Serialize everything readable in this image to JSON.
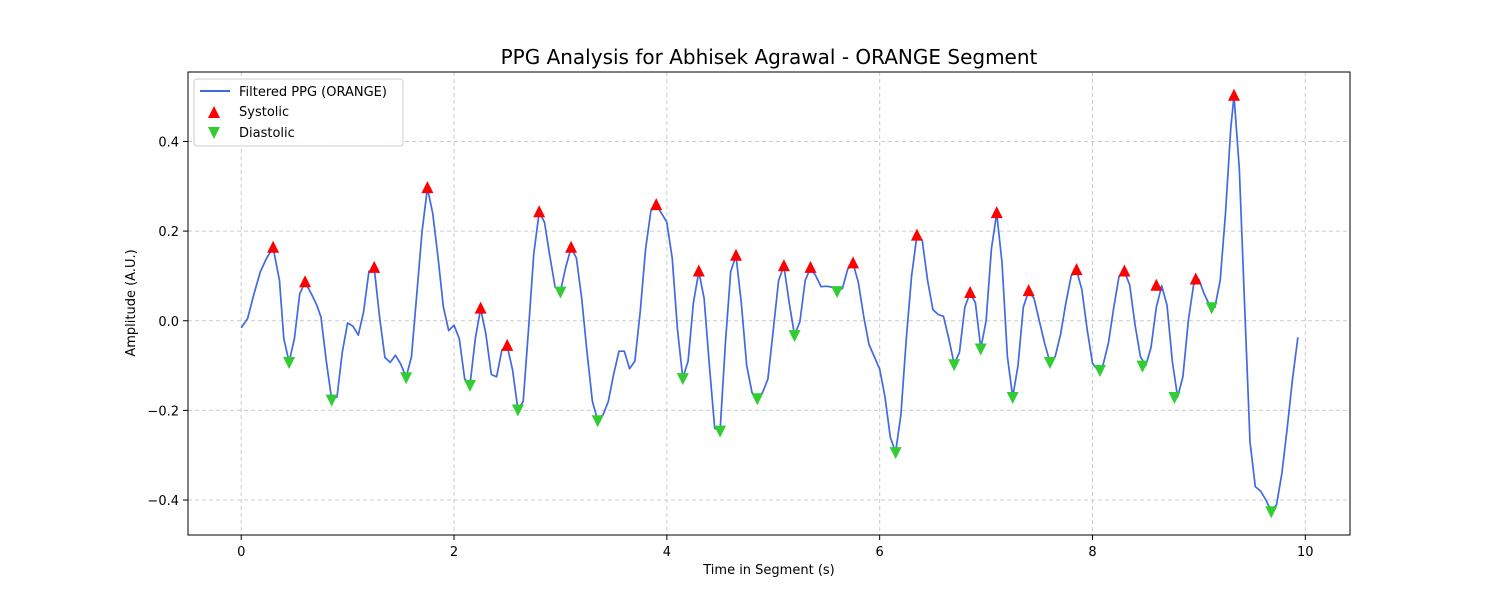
{
  "chart_data": {
    "type": "line",
    "title": "PPG Analysis for Abhisek Agrawal - ORANGE Segment",
    "xlabel": "Time in Segment (s)",
    "ylabel": "Amplitude (A.U.)",
    "xlim": [
      -0.5,
      10.42
    ],
    "ylim": [
      -0.478,
      0.555
    ],
    "xticks": [
      0,
      2,
      4,
      6,
      8,
      10
    ],
    "yticks": [
      -0.4,
      -0.2,
      0.0,
      0.2,
      0.4
    ],
    "xtick_labels": [
      "0",
      "2",
      "4",
      "6",
      "8",
      "10"
    ],
    "ytick_labels": [
      "−0.4",
      "−0.2",
      "0.0",
      "0.2",
      "0.4"
    ],
    "grid": true,
    "legend_position": "top-left",
    "colors": {
      "line": "#4169e1",
      "systolic": "#ff0000",
      "diastolic": "#32cd32",
      "grid": "#cccccc"
    },
    "series": [
      {
        "name": "Filtered PPG (ORANGE)",
        "kind": "line",
        "points": [
          [
            0.0,
            -0.016
          ],
          [
            0.06,
            0.005
          ],
          [
            0.12,
            0.06
          ],
          [
            0.18,
            0.11
          ],
          [
            0.24,
            0.14
          ],
          [
            0.3,
            0.163
          ],
          [
            0.36,
            0.09
          ],
          [
            0.4,
            -0.04
          ],
          [
            0.45,
            -0.092
          ],
          [
            0.5,
            -0.04
          ],
          [
            0.55,
            0.06
          ],
          [
            0.6,
            0.086
          ],
          [
            0.66,
            0.06
          ],
          [
            0.71,
            0.035
          ],
          [
            0.75,
            0.008
          ],
          [
            0.8,
            -0.09
          ],
          [
            0.85,
            -0.176
          ],
          [
            0.9,
            -0.17
          ],
          [
            0.95,
            -0.07
          ],
          [
            1.0,
            -0.005
          ],
          [
            1.05,
            -0.012
          ],
          [
            1.1,
            -0.032
          ],
          [
            1.15,
            0.02
          ],
          [
            1.2,
            0.11
          ],
          [
            1.25,
            0.118
          ],
          [
            1.3,
            0.01
          ],
          [
            1.35,
            -0.082
          ],
          [
            1.4,
            -0.093
          ],
          [
            1.45,
            -0.077
          ],
          [
            1.5,
            -0.097
          ],
          [
            1.55,
            -0.126
          ],
          [
            1.6,
            -0.08
          ],
          [
            1.65,
            0.06
          ],
          [
            1.7,
            0.2
          ],
          [
            1.75,
            0.296
          ],
          [
            1.8,
            0.24
          ],
          [
            1.85,
            0.14
          ],
          [
            1.9,
            0.03
          ],
          [
            1.95,
            -0.022
          ],
          [
            2.0,
            -0.01
          ],
          [
            2.05,
            -0.04
          ],
          [
            2.1,
            -0.13
          ],
          [
            2.15,
            -0.143
          ],
          [
            2.2,
            -0.04
          ],
          [
            2.25,
            0.027
          ],
          [
            2.3,
            -0.03
          ],
          [
            2.35,
            -0.12
          ],
          [
            2.4,
            -0.125
          ],
          [
            2.45,
            -0.065
          ],
          [
            2.5,
            -0.056
          ],
          [
            2.55,
            -0.11
          ],
          [
            2.6,
            -0.198
          ],
          [
            2.65,
            -0.18
          ],
          [
            2.7,
            -0.02
          ],
          [
            2.75,
            0.15
          ],
          [
            2.8,
            0.242
          ],
          [
            2.85,
            0.22
          ],
          [
            2.9,
            0.145
          ],
          [
            2.95,
            0.075
          ],
          [
            3.0,
            0.065
          ],
          [
            3.05,
            0.12
          ],
          [
            3.1,
            0.163
          ],
          [
            3.15,
            0.14
          ],
          [
            3.2,
            0.05
          ],
          [
            3.25,
            -0.07
          ],
          [
            3.3,
            -0.18
          ],
          [
            3.35,
            -0.222
          ],
          [
            3.4,
            -0.21
          ],
          [
            3.45,
            -0.18
          ],
          [
            3.5,
            -0.12
          ],
          [
            3.55,
            -0.068
          ],
          [
            3.6,
            -0.068
          ],
          [
            3.65,
            -0.107
          ],
          [
            3.7,
            -0.09
          ],
          [
            3.75,
            0.02
          ],
          [
            3.8,
            0.16
          ],
          [
            3.85,
            0.245
          ],
          [
            3.9,
            0.258
          ],
          [
            3.95,
            0.24
          ],
          [
            4.0,
            0.22
          ],
          [
            4.05,
            0.14
          ],
          [
            4.1,
            -0.02
          ],
          [
            4.15,
            -0.128
          ],
          [
            4.2,
            -0.09
          ],
          [
            4.25,
            0.04
          ],
          [
            4.3,
            0.11
          ],
          [
            4.35,
            0.05
          ],
          [
            4.4,
            -0.1
          ],
          [
            4.45,
            -0.24
          ],
          [
            4.5,
            -0.245
          ],
          [
            4.55,
            -0.05
          ],
          [
            4.6,
            0.11
          ],
          [
            4.65,
            0.145
          ],
          [
            4.7,
            0.04
          ],
          [
            4.75,
            -0.1
          ],
          [
            4.8,
            -0.16
          ],
          [
            4.85,
            -0.173
          ],
          [
            4.9,
            -0.16
          ],
          [
            4.95,
            -0.13
          ],
          [
            5.0,
            -0.02
          ],
          [
            5.05,
            0.09
          ],
          [
            5.1,
            0.122
          ],
          [
            5.15,
            0.04
          ],
          [
            5.2,
            -0.032
          ],
          [
            5.25,
            -0.002
          ],
          [
            5.3,
            0.09
          ],
          [
            5.35,
            0.118
          ],
          [
            5.4,
            0.1
          ],
          [
            5.45,
            0.076
          ],
          [
            5.5,
            0.077
          ],
          [
            5.55,
            0.075
          ],
          [
            5.6,
            0.066
          ],
          [
            5.65,
            0.072
          ],
          [
            5.7,
            0.115
          ],
          [
            5.75,
            0.128
          ],
          [
            5.8,
            0.085
          ],
          [
            5.85,
            0.01
          ],
          [
            5.9,
            -0.053
          ],
          [
            5.95,
            -0.08
          ],
          [
            6.0,
            -0.108
          ],
          [
            6.05,
            -0.17
          ],
          [
            6.1,
            -0.26
          ],
          [
            6.15,
            -0.293
          ],
          [
            6.2,
            -0.21
          ],
          [
            6.25,
            -0.04
          ],
          [
            6.3,
            0.1
          ],
          [
            6.35,
            0.19
          ],
          [
            6.4,
            0.18
          ],
          [
            6.45,
            0.09
          ],
          [
            6.5,
            0.025
          ],
          [
            6.55,
            0.014
          ],
          [
            6.6,
            0.01
          ],
          [
            6.65,
            -0.04
          ],
          [
            6.7,
            -0.097
          ],
          [
            6.75,
            -0.07
          ],
          [
            6.8,
            0.03
          ],
          [
            6.85,
            0.062
          ],
          [
            6.9,
            0.04
          ],
          [
            6.95,
            -0.062
          ],
          [
            7.0,
            0.0
          ],
          [
            7.05,
            0.16
          ],
          [
            7.1,
            0.24
          ],
          [
            7.15,
            0.13
          ],
          [
            7.2,
            -0.08
          ],
          [
            7.25,
            -0.17
          ],
          [
            7.3,
            -0.1
          ],
          [
            7.35,
            0.03
          ],
          [
            7.4,
            0.066
          ],
          [
            7.45,
            0.05
          ],
          [
            7.5,
            0.0
          ],
          [
            7.55,
            -0.05
          ],
          [
            7.6,
            -0.092
          ],
          [
            7.65,
            -0.08
          ],
          [
            7.7,
            -0.03
          ],
          [
            7.75,
            0.04
          ],
          [
            7.8,
            0.1
          ],
          [
            7.85,
            0.113
          ],
          [
            7.9,
            0.07
          ],
          [
            7.95,
            -0.02
          ],
          [
            8.0,
            -0.095
          ],
          [
            8.05,
            -0.11
          ],
          [
            8.1,
            -0.098
          ],
          [
            8.15,
            -0.05
          ],
          [
            8.2,
            0.03
          ],
          [
            8.25,
            0.1
          ],
          [
            8.3,
            0.11
          ],
          [
            8.35,
            0.08
          ],
          [
            8.4,
            -0.01
          ],
          [
            8.45,
            -0.08
          ],
          [
            8.5,
            -0.1
          ],
          [
            8.55,
            -0.06
          ],
          [
            8.6,
            0.03
          ],
          [
            8.65,
            0.078
          ],
          [
            8.7,
            0.035
          ],
          [
            8.75,
            -0.09
          ],
          [
            8.8,
            -0.17
          ],
          [
            8.85,
            -0.125
          ],
          [
            8.9,
            0.0
          ],
          [
            8.95,
            0.08
          ],
          [
            9.0,
            0.092
          ],
          [
            9.05,
            0.06
          ],
          [
            9.1,
            0.035
          ],
          [
            9.15,
            0.03
          ],
          [
            9.2,
            0.09
          ],
          [
            9.25,
            0.24
          ],
          [
            9.3,
            0.43
          ],
          [
            9.33,
            0.502
          ],
          [
            9.38,
            0.34
          ],
          [
            9.43,
            0.03
          ],
          [
            9.48,
            -0.27
          ],
          [
            9.53,
            -0.37
          ],
          [
            9.58,
            -0.38
          ],
          [
            9.63,
            -0.4
          ],
          [
            9.68,
            -0.425
          ],
          [
            9.73,
            -0.41
          ],
          [
            9.78,
            -0.34
          ],
          [
            9.83,
            -0.24
          ],
          [
            9.88,
            -0.13
          ],
          [
            9.93,
            -0.037
          ]
        ]
      },
      {
        "name": "Systolic",
        "kind": "marker-up",
        "points": [
          [
            0.3,
            0.163
          ],
          [
            0.6,
            0.086
          ],
          [
            1.25,
            0.118
          ],
          [
            1.75,
            0.296
          ],
          [
            2.25,
            0.027
          ],
          [
            2.5,
            -0.056
          ],
          [
            2.8,
            0.242
          ],
          [
            3.1,
            0.163
          ],
          [
            3.9,
            0.258
          ],
          [
            4.3,
            0.11
          ],
          [
            4.65,
            0.145
          ],
          [
            5.1,
            0.122
          ],
          [
            5.35,
            0.118
          ],
          [
            5.75,
            0.128
          ],
          [
            6.35,
            0.19
          ],
          [
            6.85,
            0.062
          ],
          [
            7.1,
            0.24
          ],
          [
            7.4,
            0.066
          ],
          [
            7.85,
            0.113
          ],
          [
            8.3,
            0.11
          ],
          [
            8.6,
            0.078
          ],
          [
            8.97,
            0.092
          ],
          [
            9.33,
            0.502
          ]
        ]
      },
      {
        "name": "Diastolic",
        "kind": "marker-down",
        "points": [
          [
            0.45,
            -0.092
          ],
          [
            0.85,
            -0.176
          ],
          [
            1.55,
            -0.126
          ],
          [
            2.15,
            -0.143
          ],
          [
            2.6,
            -0.198
          ],
          [
            3.0,
            0.065
          ],
          [
            3.35,
            -0.222
          ],
          [
            4.15,
            -0.128
          ],
          [
            4.5,
            -0.245
          ],
          [
            4.85,
            -0.173
          ],
          [
            5.2,
            -0.032
          ],
          [
            5.6,
            0.066
          ],
          [
            6.15,
            -0.293
          ],
          [
            6.7,
            -0.097
          ],
          [
            6.95,
            -0.062
          ],
          [
            7.25,
            -0.17
          ],
          [
            7.6,
            -0.092
          ],
          [
            8.07,
            -0.11
          ],
          [
            8.47,
            -0.1
          ],
          [
            8.77,
            -0.17
          ],
          [
            9.12,
            0.03
          ],
          [
            9.68,
            -0.425
          ]
        ]
      }
    ]
  }
}
